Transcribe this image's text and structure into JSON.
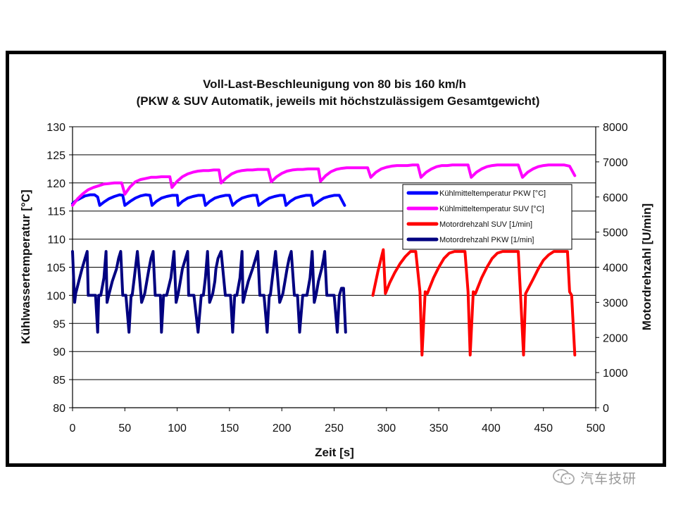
{
  "chart_data": {
    "type": "line",
    "title": "Voll-Last-Beschleunigung von 80 bis 160 km/h",
    "subtitle": "(PKW & SUV Automatik, jeweils mit höchstzulässigem Gesamtgewicht)",
    "xlabel": "Zeit [s]",
    "ylabel": "Kühlwassertemperatur [°C]",
    "y2label": "Motordrehzahl [U/min]",
    "xlim": [
      0,
      500
    ],
    "ylim": [
      80,
      130
    ],
    "y2lim": [
      0,
      8000
    ],
    "xticks": [
      0,
      50,
      100,
      150,
      200,
      250,
      300,
      350,
      400,
      450,
      500
    ],
    "yticks": [
      80,
      85,
      90,
      95,
      100,
      105,
      110,
      115,
      120,
      125,
      130
    ],
    "y2ticks": [
      0,
      1000,
      2000,
      3000,
      4000,
      5000,
      6000,
      7000,
      8000
    ],
    "grid": "horizontal",
    "legend_position": "right",
    "series": [
      {
        "name": "Kühlmitteltemperatur PKW  [°C]",
        "axis": "left",
        "color": "#0000ff",
        "x": [
          0,
          3,
          8,
          12,
          17,
          21,
          24,
          26,
          30,
          35,
          40,
          45,
          48,
          50,
          55,
          60,
          65,
          70,
          74,
          76,
          80,
          85,
          90,
          95,
          100,
          101,
          105,
          110,
          115,
          120,
          125,
          127,
          131,
          136,
          141,
          146,
          150,
          153,
          157,
          162,
          167,
          172,
          176,
          178,
          183,
          188,
          193,
          198,
          202,
          204,
          208,
          213,
          218,
          223,
          228,
          230,
          235,
          240,
          245,
          250,
          255,
          260
        ],
        "y": [
          116.3,
          116.8,
          117.3,
          117.7,
          117.9,
          117.9,
          117.5,
          116.0,
          116.6,
          117.2,
          117.6,
          117.9,
          117.8,
          116.0,
          116.7,
          117.3,
          117.7,
          117.9,
          117.8,
          116.0,
          116.7,
          117.3,
          117.6,
          117.8,
          117.8,
          116.0,
          116.7,
          117.3,
          117.6,
          117.8,
          117.8,
          116.0,
          116.7,
          117.3,
          117.6,
          117.8,
          117.8,
          116.0,
          116.7,
          117.3,
          117.6,
          117.8,
          117.8,
          116.0,
          116.7,
          117.3,
          117.6,
          117.8,
          117.8,
          116.0,
          116.7,
          117.3,
          117.6,
          117.8,
          117.8,
          116.0,
          116.7,
          117.3,
          117.6,
          117.8,
          117.8,
          116.0
        ]
      },
      {
        "name": "Kühlmitteltemperatur SUV  [°C]",
        "axis": "left",
        "color": "#ff00ff",
        "x": [
          0,
          5,
          10,
          15,
          20,
          25,
          30,
          35,
          40,
          45,
          47,
          50,
          55,
          60,
          65,
          70,
          75,
          80,
          85,
          90,
          93,
          95,
          100,
          105,
          110,
          115,
          120,
          125,
          130,
          135,
          140,
          142,
          147,
          152,
          157,
          162,
          167,
          172,
          177,
          182,
          187,
          190,
          195,
          200,
          205,
          210,
          215,
          220,
          225,
          230,
          235,
          237,
          242,
          247,
          252,
          257,
          262,
          267,
          272,
          277,
          282,
          285,
          290,
          295,
          300,
          305,
          310,
          315,
          320,
          325,
          330,
          333,
          338,
          343,
          348,
          353,
          358,
          363,
          368,
          373,
          378,
          381,
          386,
          391,
          396,
          401,
          406,
          411,
          416,
          421,
          426,
          430,
          435,
          440,
          445,
          450,
          455,
          460,
          465,
          470,
          475,
          480
        ],
        "y": [
          116.0,
          117.2,
          118.1,
          118.8,
          119.2,
          119.5,
          119.8,
          119.9,
          120.0,
          120.0,
          120.0,
          118.0,
          119.3,
          120.2,
          120.6,
          120.8,
          121.0,
          121.0,
          121.1,
          121.1,
          121.1,
          119.2,
          120.3,
          121.1,
          121.6,
          121.9,
          122.1,
          122.2,
          122.2,
          122.3,
          122.3,
          120.0,
          120.9,
          121.6,
          122.0,
          122.2,
          122.3,
          122.3,
          122.4,
          122.4,
          122.4,
          120.2,
          121.1,
          121.7,
          122.1,
          122.3,
          122.4,
          122.4,
          122.5,
          122.5,
          122.5,
          120.3,
          121.3,
          122.0,
          122.4,
          122.6,
          122.7,
          122.7,
          122.7,
          122.7,
          122.7,
          121.0,
          121.9,
          122.5,
          122.8,
          123.0,
          123.1,
          123.1,
          123.1,
          123.2,
          123.2,
          121.0,
          121.9,
          122.5,
          122.9,
          123.1,
          123.1,
          123.2,
          123.2,
          123.2,
          123.2,
          121.0,
          121.9,
          122.5,
          122.9,
          123.1,
          123.2,
          123.2,
          123.2,
          123.2,
          123.2,
          121.0,
          121.9,
          122.5,
          122.9,
          123.1,
          123.2,
          123.2,
          123.2,
          123.2,
          123.0,
          121.3
        ]
      },
      {
        "name": "Motordrehzahl SUV  [1/min]",
        "axis": "right",
        "color": "#ff0000",
        "x": [
          287,
          292,
          297,
          299,
          303,
          308,
          313,
          318,
          323,
          328,
          332,
          334,
          337,
          339,
          345,
          350,
          355,
          360,
          365,
          370,
          375,
          378,
          380,
          383,
          385,
          391,
          396,
          401,
          406,
          411,
          416,
          421,
          426,
          428,
          431,
          433,
          440,
          445,
          450,
          455,
          460,
          465,
          470,
          473,
          475,
          477,
          480
        ],
        "y": [
          3200,
          3900,
          4500,
          3250,
          3550,
          3850,
          4100,
          4300,
          4450,
          4450,
          3300,
          1500,
          3300,
          3250,
          3700,
          4000,
          4250,
          4400,
          4450,
          4450,
          4450,
          3300,
          1500,
          3300,
          3250,
          3700,
          4000,
          4250,
          4400,
          4450,
          4450,
          4450,
          4450,
          3300,
          1500,
          3250,
          3650,
          3950,
          4200,
          4350,
          4450,
          4450,
          4450,
          4450,
          3300,
          3200,
          1500
        ]
      },
      {
        "name": "Motordrehzahl PKW  [1/min]",
        "axis": "right",
        "color": "#000080",
        "x": [
          0,
          2,
          3,
          6,
          9,
          12,
          14,
          15,
          18,
          22,
          24,
          25,
          27,
          30,
          32,
          33,
          35,
          38,
          42,
          44,
          46,
          48,
          49,
          51,
          54,
          56,
          57,
          59,
          62,
          66,
          69,
          71,
          73,
          75,
          77,
          79,
          82,
          84,
          85,
          87,
          90,
          94,
          97,
          99,
          101,
          103,
          105,
          108,
          110,
          111,
          113,
          116,
          120,
          123,
          125,
          127,
          129,
          131,
          134,
          136,
          137,
          139,
          142,
          146,
          149,
          151,
          153,
          155,
          157,
          160,
          162,
          163,
          165,
          168,
          172,
          175,
          177,
          179,
          181,
          183,
          186,
          188,
          189,
          191,
          194,
          198,
          201,
          203,
          205,
          207,
          209,
          212,
          214,
          215,
          217,
          220,
          224,
          227,
          229,
          231,
          233,
          235,
          238,
          240,
          241,
          243,
          246,
          250,
          253,
          255,
          257,
          259,
          261
        ],
        "y": [
          4450,
          3000,
          3250,
          3600,
          3950,
          4250,
          4450,
          3200,
          3200,
          3200,
          2150,
          3200,
          3200,
          3700,
          4450,
          3000,
          3250,
          3600,
          3950,
          4250,
          4450,
          3200,
          3200,
          3200,
          2150,
          3200,
          3200,
          3700,
          4450,
          3000,
          3250,
          3600,
          3950,
          4250,
          4450,
          3200,
          3200,
          3200,
          2150,
          3200,
          3200,
          3700,
          4450,
          3000,
          3250,
          3600,
          3950,
          4250,
          4450,
          3200,
          3200,
          3200,
          2150,
          3200,
          3200,
          3700,
          4450,
          3000,
          3250,
          3600,
          3950,
          4250,
          4450,
          3200,
          3200,
          3200,
          2150,
          3200,
          3200,
          3700,
          4450,
          3000,
          3250,
          3600,
          3950,
          4250,
          4450,
          3200,
          3200,
          3200,
          2150,
          3200,
          3200,
          3700,
          4450,
          3000,
          3250,
          3600,
          3950,
          4250,
          4450,
          3200,
          3200,
          3200,
          2150,
          3200,
          3200,
          3700,
          4450,
          3000,
          3250,
          3600,
          3950,
          4250,
          4450,
          3200,
          3200,
          3200,
          2150,
          3200,
          3400,
          3400,
          2150
        ]
      }
    ]
  },
  "watermark": {
    "icon": "wechat-icon",
    "text": "汽车技研"
  }
}
